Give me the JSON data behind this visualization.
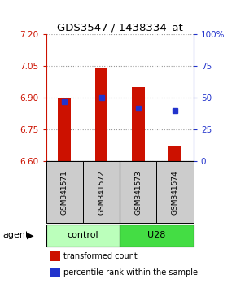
{
  "title": "GDS3547 / 1438334_at",
  "samples": [
    "GSM341571",
    "GSM341572",
    "GSM341573",
    "GSM341574"
  ],
  "bar_values": [
    6.902,
    7.043,
    6.953,
    6.672
  ],
  "base_value": 6.6,
  "percentile_values": [
    47,
    50,
    42,
    40
  ],
  "ylim_left": [
    6.6,
    7.2
  ],
  "ylim_right": [
    0,
    100
  ],
  "yticks_left": [
    6.6,
    6.75,
    6.9,
    7.05,
    7.2
  ],
  "yticks_right": [
    0,
    25,
    50,
    75,
    100
  ],
  "ytick_labels_right": [
    "0",
    "25",
    "50",
    "75",
    "100%"
  ],
  "bar_color": "#cc1100",
  "dot_color": "#2233cc",
  "grid_color": "#999999",
  "groups": [
    {
      "label": "control",
      "indices": [
        0,
        1
      ],
      "color": "#bbffbb"
    },
    {
      "label": "U28",
      "indices": [
        2,
        3
      ],
      "color": "#44dd44"
    }
  ],
  "sample_box_color": "#cccccc",
  "agent_label": "agent",
  "legend_items": [
    {
      "color": "#cc1100",
      "label": "transformed count"
    },
    {
      "color": "#2233cc",
      "label": "percentile rank within the sample"
    }
  ],
  "left_label_color": "#cc1100",
  "right_label_color": "#2233cc",
  "title_fontsize": 9.5,
  "bar_width": 0.35
}
